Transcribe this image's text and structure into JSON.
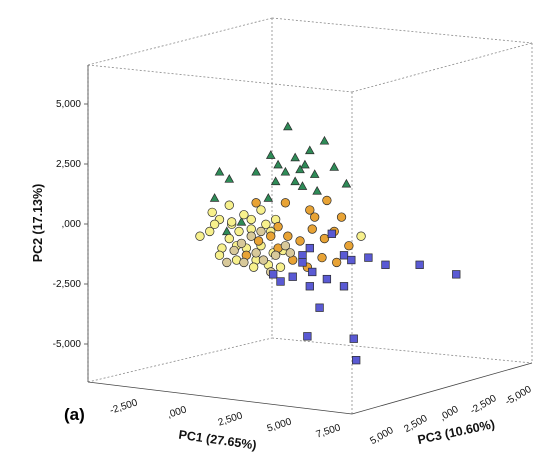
{
  "panel_label": "(a)",
  "chart_data": {
    "type": "scatter",
    "title": "",
    "projection": "3d",
    "xlabel": "PC1 (27.65%)",
    "ylabel": "PC2 (17.13%)",
    "zlabel": "PC3 (10.60%)",
    "x_ticks": [
      "-2,500",
      ",000",
      "2,500",
      "5,000",
      "7,500"
    ],
    "y_ticks": [
      "5,000",
      "2,500",
      ",000",
      "-2,500",
      "-5,000"
    ],
    "z_ticks": [
      "5,000",
      "2,500",
      ",000",
      "-2,500",
      "-5,000"
    ],
    "grid": false,
    "legend": "none",
    "series": [
      {
        "marker": "triangle",
        "color": "#2e8b57",
        "points": [
          [
            1.0,
            4.8
          ],
          [
            2.5,
            4.2
          ],
          [
            0.3,
            3.6
          ],
          [
            -1.8,
            2.9
          ],
          [
            -1.4,
            2.6
          ],
          [
            -0.3,
            2.9
          ],
          [
            0.6,
            3.2
          ],
          [
            0.9,
            2.9
          ],
          [
            1.3,
            3.5
          ],
          [
            1.7,
            3.2
          ],
          [
            2.1,
            2.8
          ],
          [
            1.3,
            2.5
          ],
          [
            1.6,
            2.3
          ],
          [
            2.9,
            3.1
          ],
          [
            3.4,
            2.4
          ],
          [
            0.2,
            1.8
          ],
          [
            -2.0,
            1.8
          ],
          [
            -1.5,
            0.4
          ],
          [
            -0.9,
            0.8
          ],
          [
            1.5,
            3.0
          ],
          [
            0.5,
            2.5
          ],
          [
            1.9,
            3.8
          ],
          [
            2.2,
            2.1
          ]
        ]
      },
      {
        "marker": "circle",
        "color": "#f7f08c",
        "points": [
          [
            -2.1,
            1.2
          ],
          [
            -1.4,
            1.5
          ],
          [
            -1.3,
            0.7
          ],
          [
            -2.2,
            0.4
          ],
          [
            -2.6,
            0.2
          ],
          [
            -1.7,
            -0.3
          ],
          [
            -1.1,
            -0.2
          ],
          [
            -1.1,
            -0.8
          ],
          [
            -1.3,
            0.8
          ],
          [
            -1.8,
            0.9
          ],
          [
            -0.8,
            1.1
          ],
          [
            -0.5,
            0.9
          ],
          [
            -0.1,
            1.3
          ],
          [
            0.3,
            0.4
          ],
          [
            -0.5,
            0.5
          ],
          [
            -0.1,
            -0.2
          ],
          [
            -0.3,
            -0.8
          ],
          [
            0.4,
            -0.5
          ],
          [
            0.7,
            -1.1
          ],
          [
            -2.0,
            0.7
          ],
          [
            -1.4,
            0.1
          ],
          [
            -0.7,
            -0.3
          ],
          [
            0.1,
            0.7
          ],
          [
            -0.4,
            -1.1
          ],
          [
            0.2,
            -1.0
          ],
          [
            4.0,
            0.2
          ],
          [
            -1.8,
            -0.6
          ],
          [
            -1.0,
            0.4
          ],
          [
            0.8,
            -0.4
          ],
          [
            0.5,
            0.9
          ]
        ]
      },
      {
        "marker": "circle",
        "color": "#e8a335",
        "points": [
          [
            0.9,
            1.6
          ],
          [
            2.6,
            1.7
          ],
          [
            0.6,
            0.6
          ],
          [
            1.0,
            0.2
          ],
          [
            1.5,
            0.0
          ],
          [
            2.0,
            0.5
          ],
          [
            2.5,
            0.1
          ],
          [
            2.4,
            -0.7
          ],
          [
            1.8,
            -1.1
          ],
          [
            1.2,
            -0.8
          ],
          [
            0.6,
            -0.3
          ],
          [
            1.9,
            1.3
          ],
          [
            3.2,
            1.0
          ],
          [
            2.9,
            0.4
          ],
          [
            3.5,
            -0.2
          ],
          [
            3.0,
            -0.9
          ],
          [
            -0.2,
            0.0
          ],
          [
            -0.7,
            -0.6
          ],
          [
            2.1,
            1.0
          ],
          [
            0.3,
            0.2
          ],
          [
            -0.3,
            1.6
          ]
        ]
      },
      {
        "marker": "circle",
        "color": "#d8c99a",
        "points": [
          [
            -0.3,
            -0.5
          ],
          [
            -0.9,
            -0.1
          ],
          [
            -1.2,
            -0.4
          ],
          [
            0.0,
            -0.8
          ],
          [
            0.5,
            -0.6
          ],
          [
            -0.5,
            0.2
          ],
          [
            -0.1,
            0.4
          ],
          [
            0.9,
            -0.2
          ],
          [
            -1.5,
            -0.9
          ],
          [
            0.3,
            -1.3
          ],
          [
            1.1,
            -0.5
          ],
          [
            -0.8,
            -0.9
          ]
        ]
      },
      {
        "marker": "square",
        "color": "#5a5ad4",
        "points": [
          [
            2.8,
            0.3
          ],
          [
            3.3,
            -0.6
          ],
          [
            1.9,
            -0.3
          ],
          [
            1.6,
            -0.6
          ],
          [
            1.2,
            -1.5
          ],
          [
            1.9,
            -1.9
          ],
          [
            2.3,
            -2.8
          ],
          [
            3.6,
            -0.8
          ],
          [
            1.6,
            -0.9
          ],
          [
            2.0,
            -1.3
          ],
          [
            3.3,
            -1.9
          ],
          [
            4.3,
            -0.7
          ],
          [
            5.0,
            -1.0
          ],
          [
            6.4,
            -1.0
          ],
          [
            7.9,
            -1.4
          ],
          [
            0.4,
            -1.4
          ],
          [
            0.7,
            -1.7
          ],
          [
            1.8,
            -4.0
          ],
          [
            3.7,
            -4.1
          ],
          [
            3.8,
            -5.0
          ],
          [
            2.6,
            -1.6
          ]
        ]
      }
    ]
  },
  "axis_ranges": {
    "x": [
      -3.5,
      9.2
    ],
    "y": [
      -6.0,
      6.5
    ]
  }
}
